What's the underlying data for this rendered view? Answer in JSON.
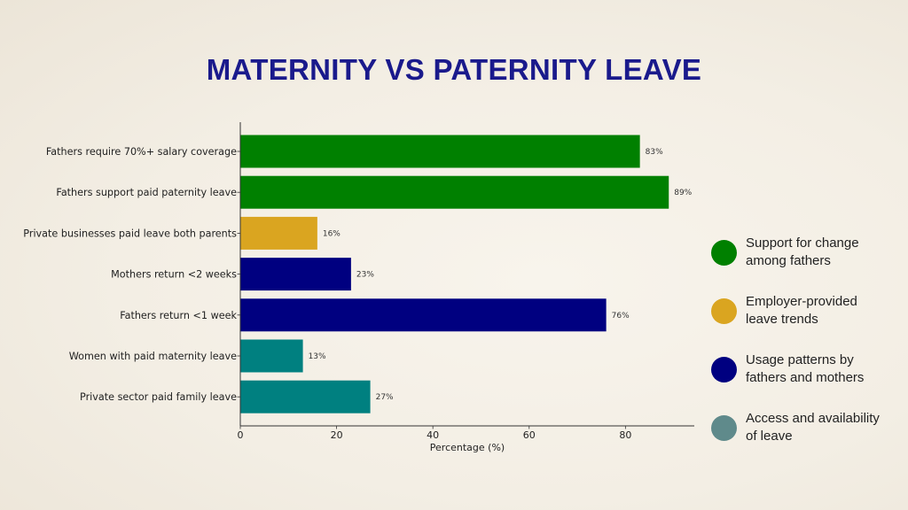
{
  "title": "MATERNITY VS PATERNITY LEAVE",
  "colors": {
    "title": "#1a1a8c",
    "support": "#008000",
    "employer": "#daa520",
    "usage": "#000080",
    "access": "#008080",
    "access_legend": "#5f8a8b",
    "axis": "#333333",
    "text": "#222222"
  },
  "chart_data": {
    "type": "bar",
    "orientation": "horizontal",
    "title": "MATERNITY VS PATERNITY LEAVE",
    "xlabel": "Percentage (%)",
    "ylabel": "",
    "xlim": [
      0,
      94.3
    ],
    "xticks": [
      0,
      20,
      40,
      60,
      80
    ],
    "grid": false,
    "legend_position": "right",
    "categories": [
      "Fathers require 70%+ salary coverage",
      "Fathers support paid paternity leave",
      "Private businesses paid leave both parents",
      "Mothers return <2 weeks",
      "Fathers return <1 week",
      "Women with paid maternity leave",
      "Private sector paid family leave"
    ],
    "values": [
      83,
      89,
      16,
      23,
      76,
      13,
      27
    ],
    "data_labels": [
      "83%",
      "89%",
      "16%",
      "23%",
      "76%",
      "13%",
      "27%"
    ],
    "groups": [
      "support",
      "support",
      "employer",
      "usage",
      "usage",
      "access",
      "access"
    ]
  },
  "legend": {
    "items": [
      {
        "key": "support",
        "label": "Support for change among fathers"
      },
      {
        "key": "employer",
        "label": "Employer-provided leave trends"
      },
      {
        "key": "usage",
        "label": "Usage patterns by fathers and mothers"
      },
      {
        "key": "access",
        "label": "Access and availability of leave"
      }
    ]
  }
}
